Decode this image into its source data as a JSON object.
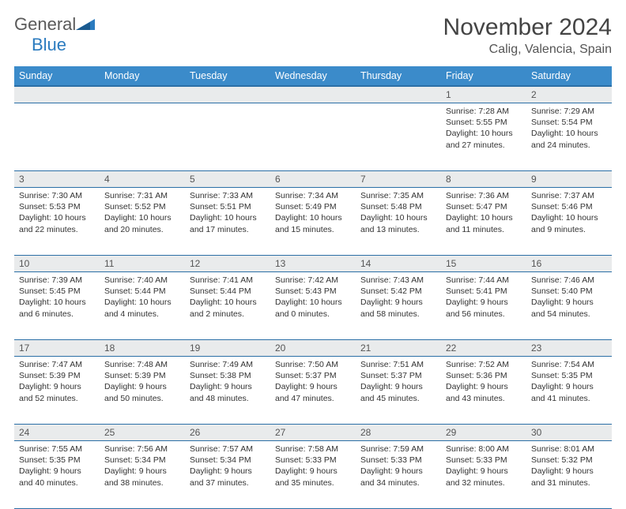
{
  "logo": {
    "text_gray": "General",
    "text_blue": "Blue"
  },
  "title": "November 2024",
  "subtitle": "Calig, Valencia, Spain",
  "colors": {
    "header_bg": "#3b8bca",
    "header_text": "#ffffff",
    "row_divider": "#2b6fa6",
    "daynum_bg": "#e9ebec",
    "body_text": "#333333",
    "logo_gray": "#5a5a5a",
    "logo_blue": "#2b7bbf"
  },
  "day_headers": [
    "Sunday",
    "Monday",
    "Tuesday",
    "Wednesday",
    "Thursday",
    "Friday",
    "Saturday"
  ],
  "weeks": [
    [
      null,
      null,
      null,
      null,
      null,
      {
        "n": "1",
        "sr": "7:28 AM",
        "ss": "5:55 PM",
        "dl": "10 hours and 27 minutes."
      },
      {
        "n": "2",
        "sr": "7:29 AM",
        "ss": "5:54 PM",
        "dl": "10 hours and 24 minutes."
      }
    ],
    [
      {
        "n": "3",
        "sr": "7:30 AM",
        "ss": "5:53 PM",
        "dl": "10 hours and 22 minutes."
      },
      {
        "n": "4",
        "sr": "7:31 AM",
        "ss": "5:52 PM",
        "dl": "10 hours and 20 minutes."
      },
      {
        "n": "5",
        "sr": "7:33 AM",
        "ss": "5:51 PM",
        "dl": "10 hours and 17 minutes."
      },
      {
        "n": "6",
        "sr": "7:34 AM",
        "ss": "5:49 PM",
        "dl": "10 hours and 15 minutes."
      },
      {
        "n": "7",
        "sr": "7:35 AM",
        "ss": "5:48 PM",
        "dl": "10 hours and 13 minutes."
      },
      {
        "n": "8",
        "sr": "7:36 AM",
        "ss": "5:47 PM",
        "dl": "10 hours and 11 minutes."
      },
      {
        "n": "9",
        "sr": "7:37 AM",
        "ss": "5:46 PM",
        "dl": "10 hours and 9 minutes."
      }
    ],
    [
      {
        "n": "10",
        "sr": "7:39 AM",
        "ss": "5:45 PM",
        "dl": "10 hours and 6 minutes."
      },
      {
        "n": "11",
        "sr": "7:40 AM",
        "ss": "5:44 PM",
        "dl": "10 hours and 4 minutes."
      },
      {
        "n": "12",
        "sr": "7:41 AM",
        "ss": "5:44 PM",
        "dl": "10 hours and 2 minutes."
      },
      {
        "n": "13",
        "sr": "7:42 AM",
        "ss": "5:43 PM",
        "dl": "10 hours and 0 minutes."
      },
      {
        "n": "14",
        "sr": "7:43 AM",
        "ss": "5:42 PM",
        "dl": "9 hours and 58 minutes."
      },
      {
        "n": "15",
        "sr": "7:44 AM",
        "ss": "5:41 PM",
        "dl": "9 hours and 56 minutes."
      },
      {
        "n": "16",
        "sr": "7:46 AM",
        "ss": "5:40 PM",
        "dl": "9 hours and 54 minutes."
      }
    ],
    [
      {
        "n": "17",
        "sr": "7:47 AM",
        "ss": "5:39 PM",
        "dl": "9 hours and 52 minutes."
      },
      {
        "n": "18",
        "sr": "7:48 AM",
        "ss": "5:39 PM",
        "dl": "9 hours and 50 minutes."
      },
      {
        "n": "19",
        "sr": "7:49 AM",
        "ss": "5:38 PM",
        "dl": "9 hours and 48 minutes."
      },
      {
        "n": "20",
        "sr": "7:50 AM",
        "ss": "5:37 PM",
        "dl": "9 hours and 47 minutes."
      },
      {
        "n": "21",
        "sr": "7:51 AM",
        "ss": "5:37 PM",
        "dl": "9 hours and 45 minutes."
      },
      {
        "n": "22",
        "sr": "7:52 AM",
        "ss": "5:36 PM",
        "dl": "9 hours and 43 minutes."
      },
      {
        "n": "23",
        "sr": "7:54 AM",
        "ss": "5:35 PM",
        "dl": "9 hours and 41 minutes."
      }
    ],
    [
      {
        "n": "24",
        "sr": "7:55 AM",
        "ss": "5:35 PM",
        "dl": "9 hours and 40 minutes."
      },
      {
        "n": "25",
        "sr": "7:56 AM",
        "ss": "5:34 PM",
        "dl": "9 hours and 38 minutes."
      },
      {
        "n": "26",
        "sr": "7:57 AM",
        "ss": "5:34 PM",
        "dl": "9 hours and 37 minutes."
      },
      {
        "n": "27",
        "sr": "7:58 AM",
        "ss": "5:33 PM",
        "dl": "9 hours and 35 minutes."
      },
      {
        "n": "28",
        "sr": "7:59 AM",
        "ss": "5:33 PM",
        "dl": "9 hours and 34 minutes."
      },
      {
        "n": "29",
        "sr": "8:00 AM",
        "ss": "5:33 PM",
        "dl": "9 hours and 32 minutes."
      },
      {
        "n": "30",
        "sr": "8:01 AM",
        "ss": "5:32 PM",
        "dl": "9 hours and 31 minutes."
      }
    ]
  ],
  "labels": {
    "sunrise": "Sunrise:",
    "sunset": "Sunset:",
    "daylight": "Daylight:"
  }
}
